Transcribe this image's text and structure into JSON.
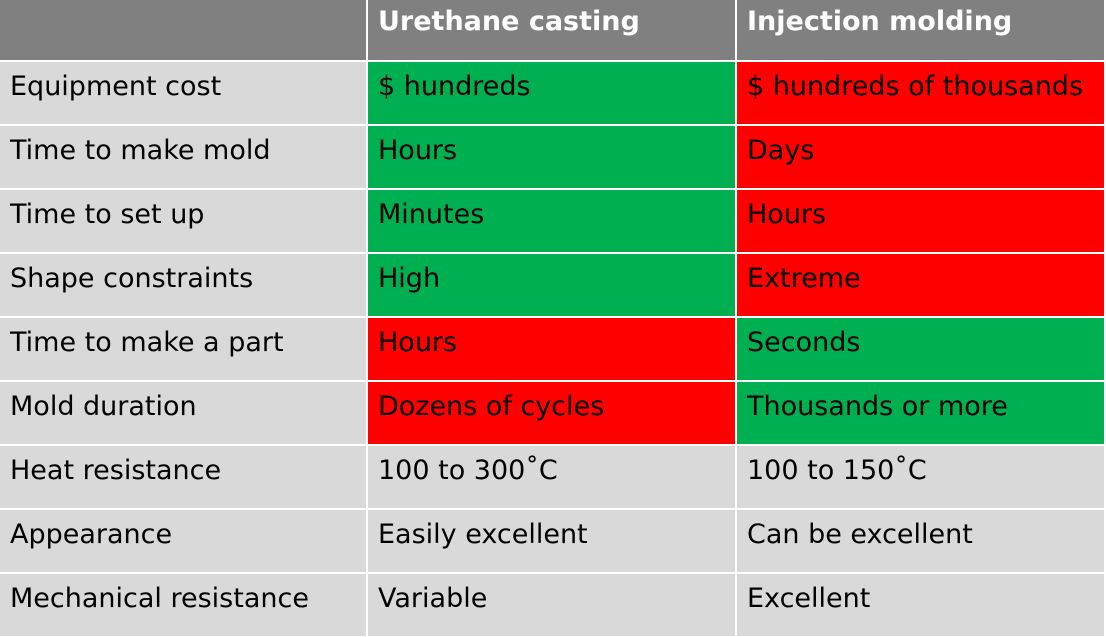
{
  "table": {
    "columns": [
      "",
      "Urethane casting",
      "Injection molding"
    ],
    "colors": {
      "header": "#808080",
      "good": "#00b050",
      "bad": "#ff0000",
      "neutral": "#d9d9d9"
    },
    "rows": [
      {
        "label": "Equipment cost",
        "urethane": "$ hundreds",
        "urethane_status": "good",
        "injection": "$ hundreds of thousands",
        "injection_status": "bad"
      },
      {
        "label": "Time to make mold",
        "urethane": "Hours",
        "urethane_status": "good",
        "injection": "Days",
        "injection_status": "bad"
      },
      {
        "label": "Time to set up",
        "urethane": "Minutes",
        "urethane_status": "good",
        "injection": "Hours",
        "injection_status": "bad"
      },
      {
        "label": "Shape constraints",
        "urethane": "High",
        "urethane_status": "good",
        "injection": "Extreme",
        "injection_status": "bad"
      },
      {
        "label": "Time to make a part",
        "urethane": "Hours",
        "urethane_status": "bad",
        "injection": "Seconds",
        "injection_status": "good"
      },
      {
        "label": "Mold duration",
        "urethane": "Dozens of cycles",
        "urethane_status": "bad",
        "injection": "Thousands or more",
        "injection_status": "good"
      },
      {
        "label": "Heat resistance",
        "urethane": "100 to 300˚C",
        "urethane_status": "neutral",
        "injection": "100 to 150˚C",
        "injection_status": "neutral"
      },
      {
        "label": "Appearance",
        "urethane": "Easily excellent",
        "urethane_status": "neutral",
        "injection": "Can be excellent",
        "injection_status": "neutral"
      },
      {
        "label": "Mechanical resistance",
        "urethane": "Variable",
        "urethane_status": "neutral",
        "injection": "Excellent",
        "injection_status": "neutral"
      }
    ]
  }
}
